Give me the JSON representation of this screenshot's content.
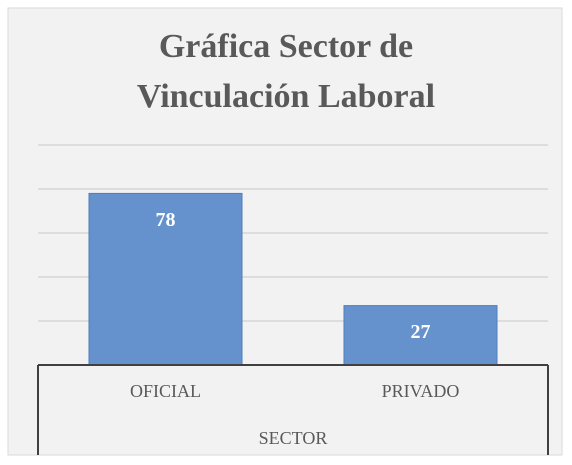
{
  "chart_data": {
    "type": "bar",
    "title": "Gráfica Sector de Vinculación Laboral",
    "categories": [
      "OFICIAL",
      "PRIVADO"
    ],
    "values": [
      78,
      27
    ],
    "color": "#6592cd",
    "x_label": "SECTOR",
    "ylim": [
      0,
      100
    ],
    "yticks": [
      0,
      20,
      40,
      60,
      80,
      100
    ],
    "grid": true
  }
}
